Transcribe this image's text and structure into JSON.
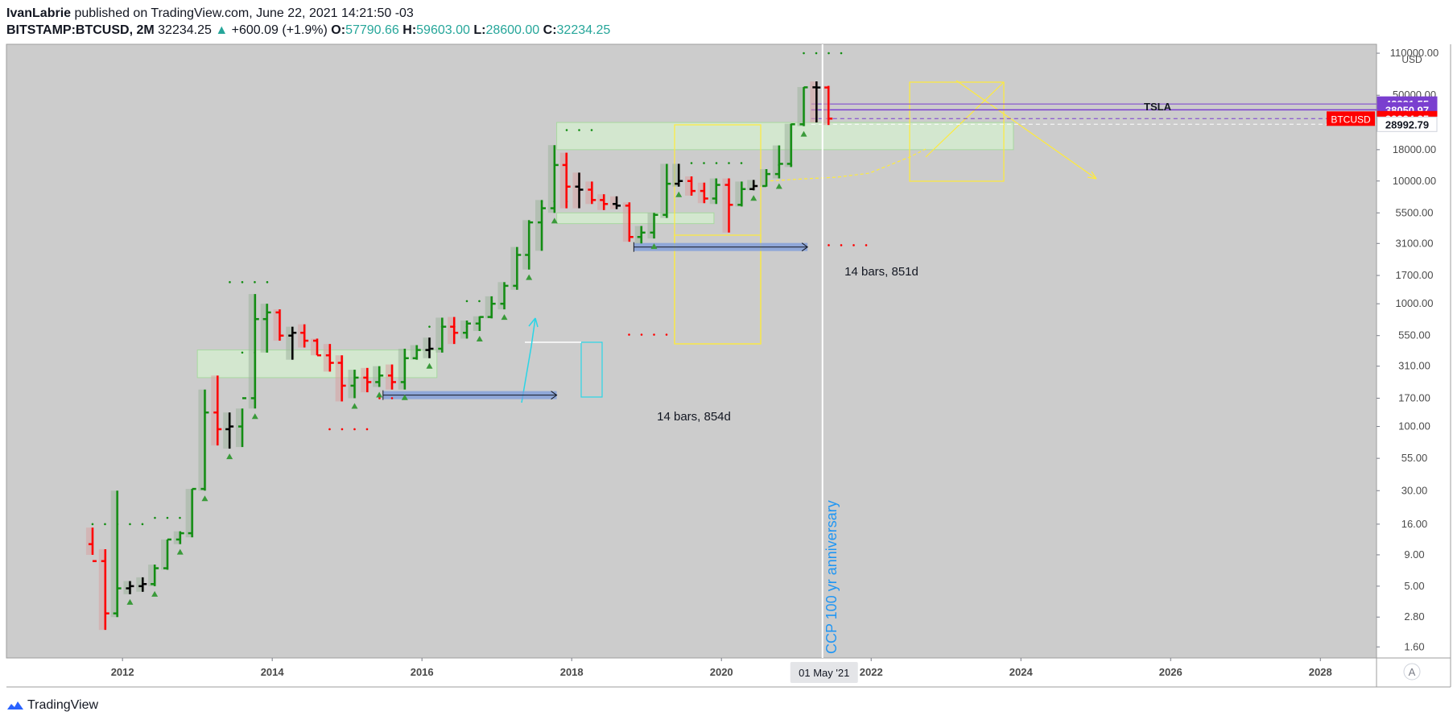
{
  "header": {
    "author": "IvanLabrie",
    "published_text": "published on TradingView.com, June 22, 2021 14:21:50 -03",
    "symbol": "BITSTAMP:BTCUSD, 2M",
    "last_price": "32234.25",
    "change": "+600.09 (+1.9%)",
    "open_label": "O:",
    "open_value": "57790.66",
    "high_label": "H:",
    "high_value": "59603.00",
    "low_label": "L:",
    "low_value": "28600.00",
    "close_label": "C:",
    "close_value": "32234.25"
  },
  "footer": {
    "brand": "TradingView"
  },
  "axis": {
    "currency": "USD",
    "auto_label": "A",
    "crosshair_date": "01 May '21"
  },
  "colors": {
    "plot_bg": "#cccccc",
    "up": "#138d13",
    "down": "#ff0000",
    "neutral": "#000000",
    "price_label_bg": "#ff0000",
    "purple_label_bg": "#7a3fcf",
    "zone_green": "#d6f0d0",
    "yellow": "#ffeb3b",
    "range_blue": "#7b9bdc",
    "annotation_blue": "#2196f3"
  },
  "annotations": {
    "range_1": "14 bars, 854d",
    "range_2": "14 bars, 851d",
    "vertical_text": "CCP 100 yr anniversary",
    "tsla": "TSLA"
  },
  "price_labels": [
    {
      "id": "purple-high",
      "text": "42381.55",
      "value": 42381.55,
      "style": "purple"
    },
    {
      "id": "purple-tsla",
      "text": "38050.97",
      "value": 38050.97,
      "style": "purple"
    },
    {
      "id": "last-price",
      "text": "32234.25",
      "value": 32234.25,
      "style": "red",
      "tag": "BTCUSD"
    },
    {
      "id": "white-low",
      "text": "28992.79",
      "value": 28992.79,
      "style": "white"
    }
  ],
  "chart_data": {
    "type": "bar",
    "title": "BITSTAMP:BTCUSD, 2M",
    "scale": "log",
    "ylabel": "USD",
    "ylim": [
      1.3,
      130000
    ],
    "xlim": [
      2010.45,
      2028.75
    ],
    "x_ticks": [
      "2012",
      "2014",
      "2016",
      "2018",
      "2020",
      "2022",
      "2024",
      "2026",
      "2028"
    ],
    "x_tick_values": [
      2012,
      2014,
      2016,
      2018,
      2020,
      2022,
      2024,
      2026,
      2028
    ],
    "y_ticks": [
      "110000.00",
      "50000.00",
      "18000.00",
      "10000.00",
      "5500.00",
      "3100.00",
      "1700.00",
      "1000.00",
      "550.00",
      "310.00",
      "170.00",
      "100.00",
      "55.00",
      "30.00",
      "16.00",
      "9.00",
      "5.00",
      "2.80",
      "1.60"
    ],
    "y_tick_values": [
      110000,
      50000,
      18000,
      10000,
      5500,
      3100,
      1700,
      1000,
      550,
      310,
      170,
      100,
      55,
      30,
      16,
      9,
      5,
      2.8,
      1.6
    ],
    "series": [
      {
        "name": "BTCUSD 2M OHLC",
        "x": [
          2011.6,
          2011.77,
          2011.93,
          2012.1,
          2012.27,
          2012.43,
          2012.6,
          2012.77,
          2012.93,
          2013.1,
          2013.27,
          2013.43,
          2013.6,
          2013.77,
          2013.93,
          2014.1,
          2014.27,
          2014.43,
          2014.6,
          2014.77,
          2014.93,
          2015.1,
          2015.27,
          2015.43,
          2015.6,
          2015.77,
          2015.93,
          2016.1,
          2016.27,
          2016.43,
          2016.6,
          2016.77,
          2016.93,
          2017.1,
          2017.27,
          2017.43,
          2017.6,
          2017.77,
          2017.93,
          2018.1,
          2018.27,
          2018.43,
          2018.6,
          2018.77,
          2018.93,
          2019.1,
          2019.27,
          2019.43,
          2019.6,
          2019.77,
          2019.93,
          2020.1,
          2020.27,
          2020.43,
          2020.6,
          2020.77,
          2020.93,
          2021.1,
          2021.27,
          2021.43
        ],
        "open": [
          11,
          8,
          3,
          4.8,
          5,
          5.2,
          7,
          12,
          13.5,
          31,
          130,
          95,
          100,
          170,
          750,
          850,
          550,
          580,
          500,
          380,
          330,
          215,
          250,
          230,
          260,
          230,
          360,
          420,
          430,
          650,
          580,
          690,
          780,
          1000,
          1400,
          2500,
          4600,
          6000,
          13500,
          9000,
          8500,
          7000,
          6500,
          6300,
          3500,
          3800,
          5300,
          9500,
          10000,
          8300,
          7200,
          9300,
          6400,
          8600,
          9100,
          11400,
          13800,
          29000,
          58000,
          57790
        ],
        "high": [
          15,
          10,
          30,
          5.5,
          5.9,
          7.5,
          12,
          14,
          31,
          200,
          260,
          130,
          140,
          1200,
          1000,
          900,
          650,
          680,
          520,
          470,
          380,
          290,
          300,
          310,
          320,
          430,
          460,
          530,
          770,
          780,
          730,
          790,
          1150,
          1500,
          2900,
          4800,
          7000,
          19600,
          17000,
          11700,
          9900,
          7800,
          7500,
          6700,
          4300,
          5500,
          13800,
          13800,
          10900,
          9700,
          10500,
          10500,
          9900,
          10200,
          12500,
          19500,
          29300,
          58300,
          64800,
          59603
        ],
        "low": [
          9,
          2.2,
          2.8,
          4.3,
          4.5,
          5,
          6.8,
          11,
          12.5,
          30,
          70,
          66,
          68,
          140,
          400,
          500,
          350,
          440,
          380,
          280,
          160,
          170,
          190,
          210,
          200,
          200,
          350,
          360,
          400,
          470,
          520,
          600,
          760,
          900,
          1300,
          1900,
          2700,
          5500,
          6000,
          6000,
          6500,
          5800,
          5900,
          3200,
          3100,
          3400,
          5000,
          9000,
          7600,
          6600,
          6500,
          3800,
          6200,
          8400,
          9000,
          10500,
          13000,
          28000,
          30000,
          28600
        ],
        "close": [
          8,
          3,
          4.8,
          5,
          5.2,
          7,
          12,
          13.5,
          31,
          130,
          95,
          100,
          170,
          750,
          850,
          550,
          580,
          500,
          380,
          330,
          215,
          250,
          230,
          260,
          230,
          360,
          420,
          430,
          650,
          580,
          690,
          780,
          1000,
          1400,
          2500,
          4600,
          6000,
          13500,
          9000,
          8500,
          7000,
          6500,
          6300,
          3500,
          3800,
          5300,
          9500,
          10000,
          8300,
          7200,
          9300,
          6400,
          8600,
          9100,
          11400,
          13800,
          29000,
          58000,
          57790,
          32234.25
        ]
      }
    ],
    "levels": [
      42381.55,
      38050.97,
      32234.25,
      28992.79
    ],
    "zones": [
      {
        "name": "zone-2013",
        "x0": 2013.0,
        "x1": 2016.2,
        "y0": 250,
        "y1": 420
      },
      {
        "name": "zone-2017",
        "x0": 2017.8,
        "x1": 2023.9,
        "y0": 18000,
        "y1": 30000
      },
      {
        "name": "zone-2018",
        "x0": 2017.8,
        "x1": 2019.9,
        "y0": 4500,
        "y1": 5500
      }
    ],
    "ranges": [
      {
        "label": "14 bars, 854d",
        "x0": 2015.48,
        "x1": 2017.8,
        "y": 180
      },
      {
        "label": "14 bars, 851d",
        "x0": 2018.83,
        "x1": 2021.15,
        "y": 2900
      }
    ],
    "event_line": {
      "x": 2021.35,
      "label": "CCP 100 yr anniversary"
    },
    "legend": "none"
  }
}
